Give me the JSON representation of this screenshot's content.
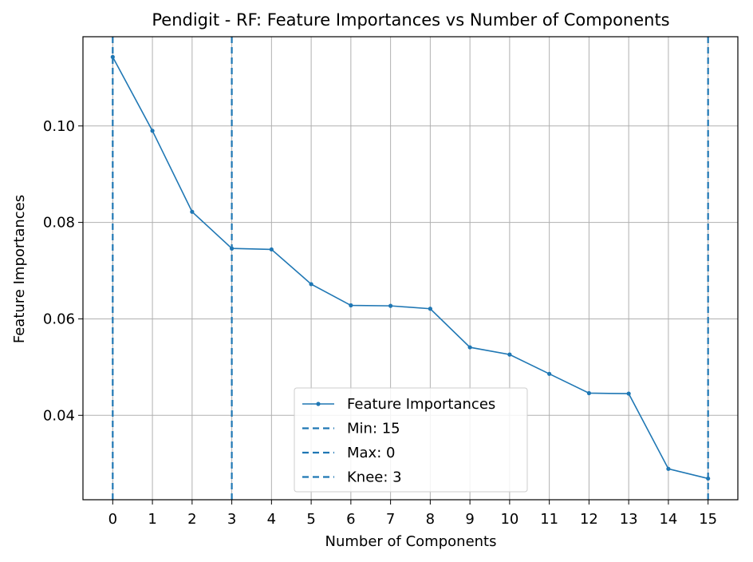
{
  "chart_data": {
    "type": "line",
    "title": "Pendigit - RF: Feature Importances vs Number of Components",
    "xlabel": "Number of Components",
    "ylabel": "Feature Importances",
    "xlim": [
      -0.75,
      15.75
    ],
    "ylim": [
      0.0225,
      0.1185
    ],
    "grid": true,
    "x": [
      0,
      1,
      2,
      3,
      4,
      5,
      6,
      7,
      8,
      9,
      10,
      11,
      12,
      13,
      14,
      15
    ],
    "xticks": [
      "0",
      "1",
      "2",
      "3",
      "4",
      "5",
      "6",
      "7",
      "8",
      "9",
      "10",
      "11",
      "12",
      "13",
      "14",
      "15"
    ],
    "yticks": [
      0.04,
      0.06,
      0.08,
      0.1
    ],
    "ytick_labels": [
      "0.04",
      "0.06",
      "0.08",
      "0.10"
    ],
    "series": [
      {
        "name": "Feature Importances",
        "color": "#1f77b4",
        "values": [
          0.1143,
          0.099,
          0.0822,
          0.0746,
          0.0744,
          0.0672,
          0.0628,
          0.0627,
          0.0621,
          0.0541,
          0.0526,
          0.0486,
          0.0446,
          0.0445,
          0.0289,
          0.0269
        ]
      }
    ],
    "vlines": [
      {
        "name": "Min: 15",
        "x": 15,
        "color": "#1f77b4",
        "style": "dashed"
      },
      {
        "name": "Max: 0",
        "x": 0,
        "color": "#1f77b4",
        "style": "dashed"
      },
      {
        "name": "Knee: 3",
        "x": 3,
        "color": "#1f77b4",
        "style": "dashed"
      }
    ],
    "legend": {
      "placement": "lower-center",
      "entries": [
        "Feature Importances",
        "Min: 15",
        "Max: 0",
        "Knee: 3"
      ]
    }
  }
}
